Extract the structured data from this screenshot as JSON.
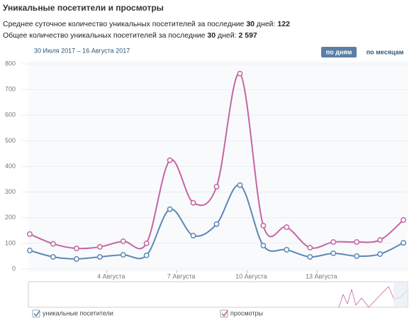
{
  "chart_data": {
    "type": "line",
    "title": "Уникальные посетители и просмотры",
    "stat_avg": {
      "text": "Среднее суточное количество уникальных посетителей за последние",
      "days": "30",
      "unit": "дней:",
      "value": "122"
    },
    "stat_total": {
      "text": "Общее количество уникальных посетителей за последние",
      "days": "30",
      "unit": "дней:",
      "value": "2 597"
    },
    "date_range": "30 Июля 2017 – 16 Августа 2017",
    "buttons": [
      "по дням",
      "по месяцам"
    ],
    "categories": [
      null,
      null,
      null,
      "4 Августа",
      null,
      null,
      "7 Августа",
      null,
      null,
      "10 Августа",
      null,
      null,
      "13 Августа",
      null,
      null,
      null,
      null
    ],
    "series": [
      {
        "name": "уникальные посетители",
        "color": "#5b88b5",
        "values": [
          72,
          47,
          39,
          47,
          55,
          53,
          233,
          130,
          175,
          327,
          91,
          75,
          47,
          61,
          50,
          58,
          102
        ]
      },
      {
        "name": "просмотры",
        "color": "#c565a3",
        "values": [
          136,
          98,
          80,
          86,
          108,
          100,
          424,
          258,
          321,
          762,
          169,
          163,
          83,
          105,
          105,
          113,
          191
        ]
      }
    ],
    "ylim": [
      0,
      800
    ],
    "yticks": [
      0,
      100,
      200,
      300,
      400,
      500,
      600,
      700,
      800
    ],
    "grid": true
  }
}
